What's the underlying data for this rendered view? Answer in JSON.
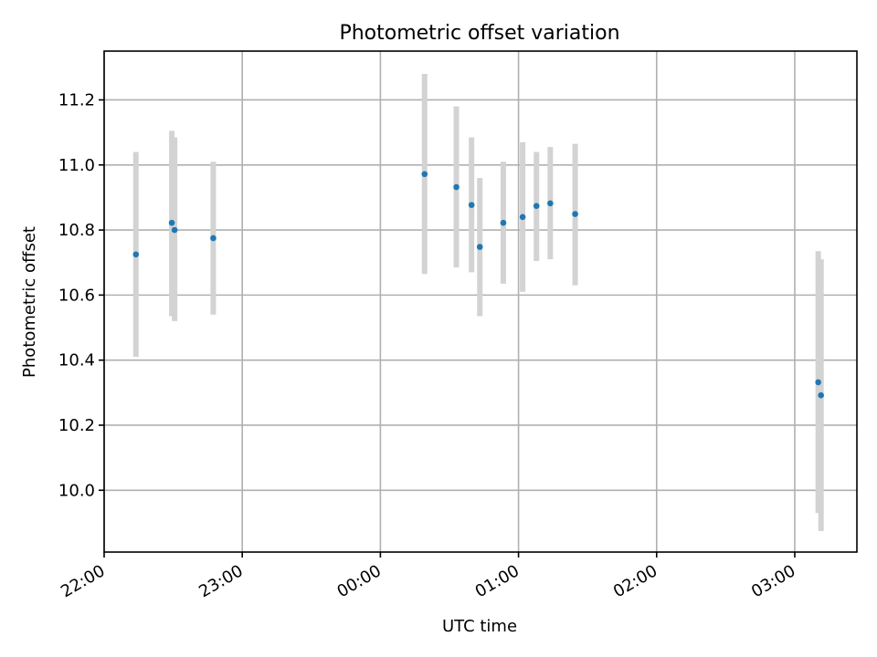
{
  "chart_data": {
    "type": "scatter",
    "title": "Photometric offset variation",
    "xlabel": "UTC time",
    "ylabel": "Photometric offset",
    "x_axis_kind": "time (hours relative to 00:00 UTC, spanning midnight)",
    "xlim": [
      -2.0,
      3.45
    ],
    "ylim": [
      9.81,
      11.35
    ],
    "grid": true,
    "x_ticks": [
      {
        "value": -2,
        "label": "22:00"
      },
      {
        "value": -1,
        "label": "23:00"
      },
      {
        "value": 0,
        "label": "00:00"
      },
      {
        "value": 1,
        "label": "01:00"
      },
      {
        "value": 2,
        "label": "02:00"
      },
      {
        "value": 3,
        "label": "03:00"
      }
    ],
    "y_ticks": [
      {
        "value": 10.0,
        "label": "10.0"
      },
      {
        "value": 10.2,
        "label": "10.2"
      },
      {
        "value": 10.4,
        "label": "10.4"
      },
      {
        "value": 10.6,
        "label": "10.6"
      },
      {
        "value": 10.8,
        "label": "10.8"
      },
      {
        "value": 11.0,
        "label": "11.0"
      },
      {
        "value": 11.2,
        "label": "11.2"
      }
    ],
    "series": [
      {
        "marker_color": "#1f77b4",
        "errorbar_color": "#d3d3d3",
        "points": [
          {
            "x": -1.77,
            "y": 10.725,
            "low": 10.41,
            "high": 11.04
          },
          {
            "x": -1.51,
            "y": 10.822,
            "low": 10.535,
            "high": 11.105
          },
          {
            "x": -1.49,
            "y": 10.8,
            "low": 10.52,
            "high": 11.085
          },
          {
            "x": -1.21,
            "y": 10.775,
            "low": 10.54,
            "high": 11.01
          },
          {
            "x": 0.32,
            "y": 10.972,
            "low": 10.665,
            "high": 11.28
          },
          {
            "x": 0.55,
            "y": 10.932,
            "low": 10.685,
            "high": 11.18
          },
          {
            "x": 0.66,
            "y": 10.877,
            "low": 10.67,
            "high": 11.085
          },
          {
            "x": 0.72,
            "y": 10.748,
            "low": 10.535,
            "high": 10.96
          },
          {
            "x": 0.89,
            "y": 10.822,
            "low": 10.635,
            "high": 11.01
          },
          {
            "x": 1.03,
            "y": 10.84,
            "low": 10.61,
            "high": 11.07
          },
          {
            "x": 1.13,
            "y": 10.874,
            "low": 10.705,
            "high": 11.04
          },
          {
            "x": 1.23,
            "y": 10.882,
            "low": 10.71,
            "high": 11.055
          },
          {
            "x": 1.41,
            "y": 10.849,
            "low": 10.63,
            "high": 11.065
          },
          {
            "x": 3.17,
            "y": 10.332,
            "low": 9.93,
            "high": 10.735
          },
          {
            "x": 3.19,
            "y": 10.292,
            "low": 9.875,
            "high": 10.71
          }
        ]
      }
    ]
  }
}
